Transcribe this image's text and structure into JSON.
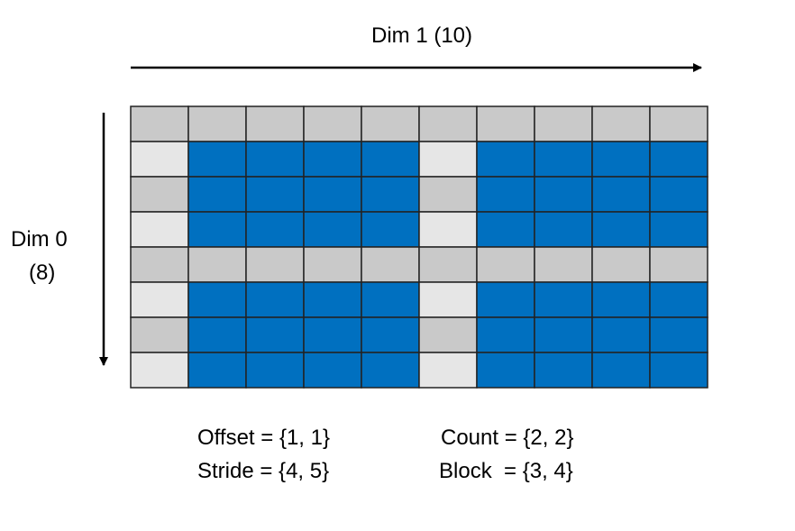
{
  "labels": {
    "dim1": "Dim 1 (10)",
    "dim0_line1": "Dim 0",
    "dim0_line2": "(8)",
    "offset": "Offset = {1, 1}",
    "stride": "Stride = {4, 5}",
    "count": "Count = {2, 2}",
    "block": "Block  = {3, 4}"
  },
  "colors": {
    "selected": "#0070c0",
    "gray_dark": "#c9c9c9",
    "gray_light": "#e6e6e6",
    "grid_line": "#222222"
  },
  "grid": {
    "rows": 8,
    "cols": 10,
    "cells": [
      "DDDDDDDDDD",
      "LSSSSLSSSS",
      "DSSSSDSSSS",
      "LSSSSLSSSS",
      "DDDDDDDDDD",
      "LSSSSLSSSS",
      "DSSSSDSSSS",
      "LSSSSLSSSS"
    ]
  }
}
